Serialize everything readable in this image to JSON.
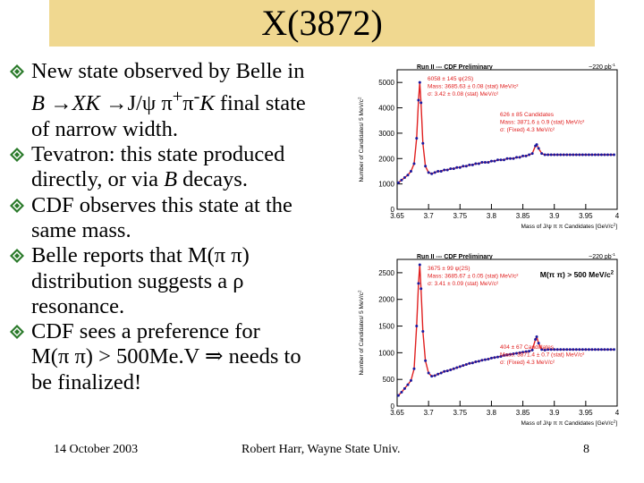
{
  "slide": {
    "title": "X(3872)",
    "bullets": [
      {
        "pre": "New state observed by Belle in",
        "line2a": "B ",
        "line2b": "XK ",
        "line2c": "J/ψ π",
        "sup1": "+",
        "line2d": "π",
        "sup2": "-",
        "line2e": "K",
        "line2f": " final state",
        "line3": "of narrow width."
      },
      {
        "line1": "Tevatron:  this state produced",
        "line2": "directly, or via ",
        "line2i": "B",
        "line2e": " decays."
      },
      {
        "line1": "CDF observes this state at the",
        "line2": "same mass."
      },
      {
        "line1": "Belle reports that M(π π)",
        "line2": "distribution suggests a ρ",
        "line3": "resonance."
      },
      {
        "line1": "CDF sees a preference for",
        "line2a": "M(π π) > 500Me.V ",
        "line2b": " needs to",
        "line3": "be finalized!"
      }
    ],
    "footer": {
      "date": "14 October 2003",
      "author": "Robert Harr, Wayne State Univ.",
      "page": "8"
    },
    "colors": {
      "title_bg": "#f0d890",
      "fit": "#e02020",
      "points": "#1a1aa0",
      "bullet_icon": "#2a7a2a"
    }
  },
  "chart_data": [
    {
      "type": "scatter",
      "header": "Run II --- CDF Preliminary",
      "lumi": "~220 pb",
      "lumi_sup": "-1",
      "ylabel": "Number of Candidates/ 5 MeV/c",
      "ylabel_sup": "2",
      "xlabel": "Mass of J/ψ π π Candidates [GeV/c",
      "xlabel_sup": "2",
      "xlabel_end": "]",
      "xlim": [
        3.65,
        4.0
      ],
      "ylim": [
        0,
        5500
      ],
      "x_ticks": [
        "3.65",
        "3.7",
        "3.75",
        "3.8",
        "3.85",
        "3.9",
        "3.95",
        "4"
      ],
      "y_ticks": [
        "0",
        "1000",
        "2000",
        "3000",
        "4000",
        "5000"
      ],
      "fit_legend": [
        "6058 ± 145 ψ(2S)",
        "Mass: 3685.63 ± 0.08 (stat) MeV/c²",
        "σ: 3.42 ± 0.08 (stat) MeV/c²"
      ],
      "signal_legend": [
        "626 ± 85 Candidates",
        "Mass: 3871.6 ± 0.9 (stat) MeV/c²",
        "σ: (Fixed) 4.3 MeV/c²"
      ],
      "series": [
        {
          "x": [
            3.652,
            3.657,
            3.662,
            3.667,
            3.672,
            3.677,
            3.681,
            3.684,
            3.686,
            3.688,
            3.691,
            3.695,
            3.7,
            3.705,
            3.71,
            3.715,
            3.72,
            3.725,
            3.73,
            3.735,
            3.74,
            3.745,
            3.75,
            3.755,
            3.76,
            3.765,
            3.77,
            3.775,
            3.78,
            3.785,
            3.79,
            3.795,
            3.8,
            3.805,
            3.81,
            3.815,
            3.82,
            3.825,
            3.83,
            3.835,
            3.84,
            3.845,
            3.85,
            3.855,
            3.86,
            3.865,
            3.87,
            3.872,
            3.875,
            3.88,
            3.885,
            3.89,
            3.895,
            3.9,
            3.905,
            3.91,
            3.915,
            3.92,
            3.925,
            3.93,
            3.935,
            3.94,
            3.945,
            3.95,
            3.955,
            3.96,
            3.965,
            3.97,
            3.975,
            3.98,
            3.985,
            3.99,
            3.995
          ],
          "y": [
            1050,
            1150,
            1250,
            1350,
            1500,
            1800,
            2800,
            4300,
            5000,
            4200,
            2600,
            1700,
            1450,
            1400,
            1450,
            1500,
            1500,
            1550,
            1550,
            1600,
            1600,
            1650,
            1650,
            1700,
            1700,
            1750,
            1750,
            1800,
            1800,
            1850,
            1850,
            1850,
            1900,
            1900,
            1950,
            1950,
            1950,
            2000,
            2000,
            2000,
            2050,
            2050,
            2100,
            2100,
            2150,
            2200,
            2500,
            2550,
            2400,
            2200,
            2150,
            2150,
            2150,
            2150,
            2150,
            2150,
            2150,
            2150,
            2150,
            2150,
            2150,
            2150,
            2150,
            2150,
            2150,
            2150,
            2150,
            2150,
            2150,
            2150,
            2150,
            2150,
            2150
          ]
        }
      ]
    },
    {
      "type": "scatter",
      "header": "Run II --- CDF Preliminary",
      "lumi": "~220 pb",
      "lumi_sup": "-1",
      "cut": "M(π π) > 500 MeV/c",
      "cut_sup": "2",
      "ylabel": "Number of Candidates/ 5 MeV/c",
      "ylabel_sup": "2",
      "xlabel": "Mass of J/ψ π π Candidates [GeV/c",
      "xlabel_sup": "2",
      "xlabel_end": "]",
      "xlim": [
        3.65,
        4.0
      ],
      "ylim": [
        0,
        2750
      ],
      "x_ticks": [
        "3.65",
        "3.7",
        "3.75",
        "3.8",
        "3.85",
        "3.9",
        "3.95",
        "4"
      ],
      "y_ticks": [
        "0",
        "500",
        "1000",
        "1500",
        "2000",
        "2500"
      ],
      "fit_legend": [
        "3675 ± 99 ψ(2S)",
        "Mass: 3685.67 ± 0.05 (stat) MeV/c²",
        "σ: 3.41 ± 0.09 (stat) MeV/c²"
      ],
      "signal_legend": [
        "404 ± 67 Candidates",
        "Mass: 3871.4 ± 0.7 (stat) MeV/c²",
        "σ: (Fixed) 4.3 MeV/c²"
      ],
      "series": [
        {
          "x": [
            3.652,
            3.657,
            3.662,
            3.667,
            3.672,
            3.677,
            3.681,
            3.684,
            3.686,
            3.688,
            3.691,
            3.695,
            3.7,
            3.705,
            3.71,
            3.715,
            3.72,
            3.725,
            3.73,
            3.735,
            3.74,
            3.745,
            3.75,
            3.755,
            3.76,
            3.765,
            3.77,
            3.775,
            3.78,
            3.785,
            3.79,
            3.795,
            3.8,
            3.805,
            3.81,
            3.815,
            3.82,
            3.825,
            3.83,
            3.835,
            3.84,
            3.845,
            3.85,
            3.855,
            3.86,
            3.865,
            3.87,
            3.872,
            3.875,
            3.88,
            3.885,
            3.89,
            3.895,
            3.9,
            3.905,
            3.91,
            3.915,
            3.92,
            3.925,
            3.93,
            3.935,
            3.94,
            3.945,
            3.95,
            3.955,
            3.96,
            3.965,
            3.97,
            3.975,
            3.98,
            3.985,
            3.99,
            3.995
          ],
          "y": [
            200,
            260,
            330,
            400,
            480,
            700,
            1500,
            2300,
            2650,
            2200,
            1400,
            850,
            620,
            560,
            570,
            600,
            620,
            650,
            660,
            680,
            700,
            720,
            740,
            760,
            780,
            800,
            810,
            830,
            840,
            860,
            870,
            880,
            900,
            910,
            920,
            930,
            950,
            960,
            970,
            980,
            990,
            1000,
            1010,
            1020,
            1030,
            1050,
            1250,
            1300,
            1180,
            1060,
            1050,
            1060,
            1060,
            1060,
            1060,
            1060,
            1060,
            1060,
            1060,
            1060,
            1060,
            1060,
            1060,
            1060,
            1060,
            1060,
            1060,
            1060,
            1060,
            1060,
            1060,
            1060,
            1060
          ]
        }
      ]
    }
  ]
}
